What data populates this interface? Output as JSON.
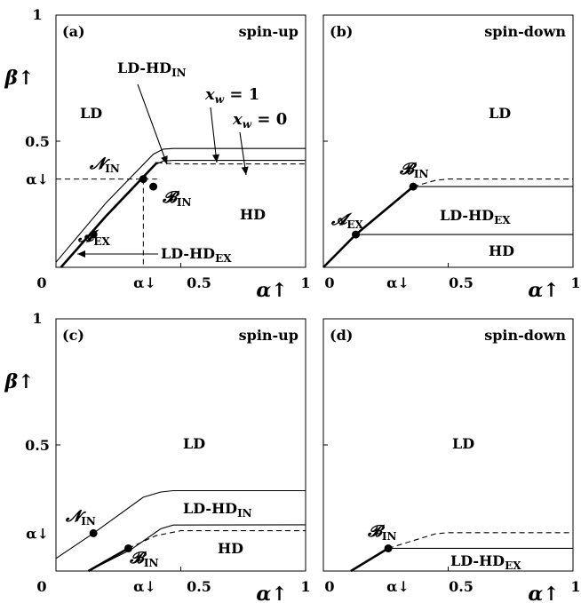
{
  "chart_data": [
    {
      "type": "line",
      "panel_label": "(a)",
      "title": "spin-up",
      "xlim": [
        0,
        1
      ],
      "ylim": [
        0,
        1
      ],
      "axis_label_y_top": "β↑",
      "axis_label_x_bottom": "α↑",
      "x_tick_labels": [
        "0",
        "α↓",
        "0.5",
        "1"
      ],
      "y_tick_labels": [
        "1",
        "0.5",
        "α↓"
      ],
      "series": [
        {
          "name": "x_w = 1",
          "style": "thin-solid",
          "x": [
            0,
            0.2,
            0.39,
            0.43,
            0.47,
            1.0
          ],
          "y": [
            0.02,
            0.255,
            0.4485,
            0.4685,
            0.471,
            0.471
          ]
        },
        {
          "name": "x_w = 0",
          "style": "thin-solid",
          "x": [
            0.39,
            0.43,
            0.47,
            1.0
          ],
          "y": [
            0.4035,
            0.4215,
            0.424,
            0.424
          ]
        },
        {
          "name": "",
          "style": "thick-solid",
          "x": [
            0.02,
            0.2,
            0.405
          ],
          "y": [
            0,
            0.2025,
            0.4155
          ]
        },
        {
          "name": "",
          "style": "thin-dashed",
          "x": [
            0.405,
            0.45,
            0.5,
            1.0
          ],
          "y": [
            0.4155,
            0.4115,
            0.41,
            0.41
          ]
        }
      ],
      "guides": {
        "alpha_down_x": 0.35,
        "alpha_down_y": 0.35
      },
      "points": [
        {
          "label": "N",
          "subscript": "IN",
          "x": 0.35,
          "y": 0.35
        },
        {
          "label": "B",
          "subscript": "IN",
          "x": 0.39,
          "y": 0.32
        },
        {
          "label": "A",
          "subscript": "EX",
          "x": 0.15,
          "y": 0.13
        }
      ],
      "regions": [
        {
          "label": "LD",
          "sub": ""
        },
        {
          "label": "HD",
          "sub": ""
        },
        {
          "label": "LD-HD",
          "sub": "IN"
        },
        {
          "label": "LD-HD",
          "sub": "EX"
        }
      ],
      "annotations": [
        {
          "label": "x",
          "sub": "w",
          "text": " = 1"
        },
        {
          "label": "x",
          "sub": "w",
          "text": " = 0"
        }
      ]
    },
    {
      "type": "line",
      "panel_label": "(b)",
      "title": "spin-down",
      "xlim": [
        0,
        1
      ],
      "ylim": [
        0,
        1
      ],
      "axis_label_x_bottom": "α↑",
      "x_tick_labels": [
        "0",
        "α↓",
        "0.5",
        "1"
      ],
      "series": [
        {
          "name": "",
          "style": "thick-solid",
          "x": [
            0,
            0.13,
            0.36
          ],
          "y": [
            0,
            0.13,
            0.32
          ]
        },
        {
          "name": "",
          "style": "thin-solid",
          "x": [
            0.36,
            1.0
          ],
          "y": [
            0.32,
            0.32
          ]
        },
        {
          "name": "",
          "style": "thin-solid",
          "x": [
            0.13,
            1.0
          ],
          "y": [
            0.13,
            0.13
          ]
        },
        {
          "name": "",
          "style": "thin-dashed",
          "x": [
            0.36,
            0.45,
            0.5,
            1.0
          ],
          "y": [
            0.32,
            0.345,
            0.35,
            0.35
          ]
        }
      ],
      "points": [
        {
          "label": "B",
          "subscript": "IN",
          "x": 0.36,
          "y": 0.32
        },
        {
          "label": "A",
          "subscript": "EX",
          "x": 0.13,
          "y": 0.13
        }
      ],
      "regions": [
        {
          "label": "LD",
          "sub": ""
        },
        {
          "label": "LD-HD",
          "sub": "EX"
        },
        {
          "label": "HD",
          "sub": ""
        }
      ]
    },
    {
      "type": "line",
      "panel_label": "(c)",
      "title": "spin-up",
      "xlim": [
        0,
        1
      ],
      "ylim": [
        0,
        1
      ],
      "axis_label_y_top": "β↑",
      "axis_label_x_bottom": "α↑",
      "x_tick_labels": [
        "0",
        "α↓",
        "0.5",
        "1"
      ],
      "y_tick_labels": [
        "1",
        "0.5",
        "α↓"
      ],
      "series": [
        {
          "name": "",
          "style": "thin-solid",
          "x": [
            0,
            0.15,
            0.35,
            0.42,
            0.47,
            1.0
          ],
          "y": [
            0.05,
            0.15,
            0.2925,
            0.3135,
            0.3185,
            0.3185
          ]
        },
        {
          "name": "",
          "style": "thin-solid",
          "x": [
            0.13,
            0.3,
            0.42,
            0.47,
            1.0
          ],
          "y": [
            0,
            0.085,
            0.1675,
            0.1825,
            0.1835
          ]
        },
        {
          "name": "",
          "style": "thick-solid",
          "x": [
            0.13,
            0.29
          ],
          "y": [
            0,
            0.09
          ]
        },
        {
          "name": "",
          "style": "thin-dashed",
          "x": [
            0.29,
            0.4,
            0.5,
            1.0
          ],
          "y": [
            0.09,
            0.14,
            0.16,
            0.16
          ]
        }
      ],
      "points": [
        {
          "label": "N",
          "subscript": "IN",
          "x": 0.15,
          "y": 0.15
        },
        {
          "label": "B",
          "subscript": "IN",
          "x": 0.29,
          "y": 0.09
        }
      ],
      "regions": [
        {
          "label": "LD",
          "sub": ""
        },
        {
          "label": "LD-HD",
          "sub": "IN"
        },
        {
          "label": "HD",
          "sub": ""
        }
      ]
    },
    {
      "type": "line",
      "panel_label": "(d)",
      "title": "spin-down",
      "xlim": [
        0,
        1
      ],
      "ylim": [
        0,
        1
      ],
      "axis_label_x_bottom": "α↑",
      "x_tick_labels": [
        "0",
        "α↓",
        "0.5",
        "1"
      ],
      "series": [
        {
          "name": "",
          "style": "thick-solid",
          "x": [
            0.11,
            0.26
          ],
          "y": [
            0,
            0.09
          ]
        },
        {
          "name": "",
          "style": "thin-solid",
          "x": [
            0.26,
            1.0
          ],
          "y": [
            0.09,
            0.09
          ]
        },
        {
          "name": "",
          "style": "thin-dashed",
          "x": [
            0.26,
            0.45,
            0.5,
            1.0
          ],
          "y": [
            0.09,
            0.148,
            0.152,
            0.152
          ]
        }
      ],
      "points": [
        {
          "label": "B",
          "subscript": "IN",
          "x": 0.26,
          "y": 0.09
        }
      ],
      "regions": [
        {
          "label": "LD",
          "sub": ""
        },
        {
          "label": "LD-HD",
          "sub": "EX"
        }
      ]
    }
  ]
}
